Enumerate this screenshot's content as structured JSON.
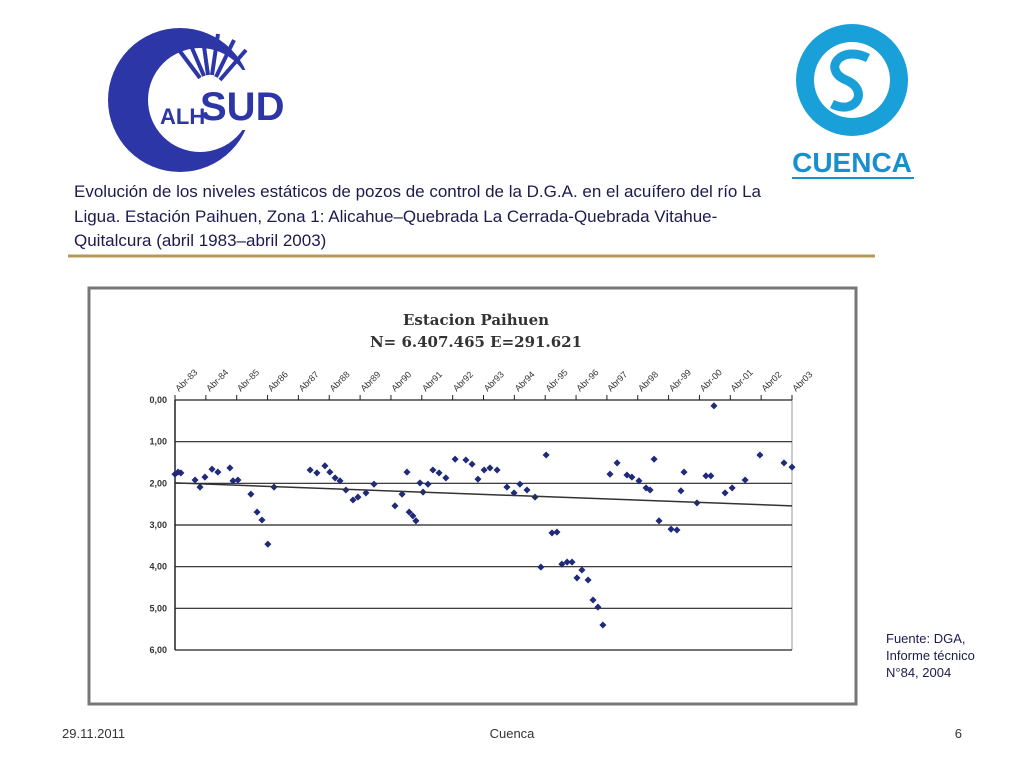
{
  "slide": {
    "logo_left": {
      "part1": "ALH",
      "part2": "SUD"
    },
    "logo_right": "CUENCA",
    "title_lines": [
      "Evolución de los niveles estáticos de pozos de control de la D.G.A. en el acuífero del río La",
      "Ligua. Estación Paihuen, Zona 1: Alicahue–Quebrada La Cerrada-Quebrada Vitahue-",
      "Quitalcura (abril 1983–abril 2003)"
    ],
    "source_lines": [
      "Fuente: DGA,",
      "Informe técnico",
      "N°84, 2004"
    ],
    "footer": {
      "date": "29.11.2011",
      "center": "Cuenca",
      "page": "6"
    }
  },
  "chart_data": {
    "type": "scatter",
    "title": "Estacion Paihuen",
    "subtitle": "N= 6.407.465 E=291.621",
    "x": [
      1983.0,
      1983.1,
      1983.19,
      1983.65,
      1983.81,
      1983.97,
      1984.2,
      1984.39,
      1984.78,
      1984.88,
      1985.04,
      1985.46,
      1985.66,
      1985.82,
      1986.01,
      1986.21,
      1987.38,
      1987.6,
      1987.86,
      1988.02,
      1988.19,
      1988.35,
      1988.54,
      1988.77,
      1988.93,
      1989.19,
      1989.45,
      1990.13,
      1990.36,
      1990.52,
      1990.59,
      1990.71,
      1990.81,
      1990.94,
      1991.04,
      1991.2,
      1991.36,
      1991.56,
      1991.78,
      1992.08,
      1992.43,
      1992.63,
      1992.82,
      1993.02,
      1993.21,
      1993.44,
      1993.76,
      1993.99,
      1994.18,
      1994.41,
      1994.67,
      1994.86,
      1995.03,
      1995.22,
      1995.38,
      1995.54,
      1995.71,
      1995.87,
      1996.03,
      1996.19,
      1996.39,
      1996.55,
      1996.71,
      1996.87,
      1997.1,
      1997.33,
      1997.65,
      1997.81,
      1998.04,
      1998.27,
      1998.4,
      1998.53,
      1998.69,
      1999.08,
      1999.27,
      1999.4,
      1999.5,
      1999.92,
      2000.21,
      2000.37,
      2000.47,
      2000.83,
      2001.06,
      2001.48,
      2001.96,
      2002.74,
      2003.0
    ],
    "series": [
      {
        "color": "#1f2a78",
        "values": [
          1.78,
          1.73,
          1.75,
          1.92,
          2.09,
          1.85,
          1.66,
          1.73,
          1.63,
          1.94,
          1.92,
          2.26,
          2.69,
          2.88,
          3.46,
          2.09,
          1.68,
          1.75,
          1.58,
          1.73,
          1.87,
          1.94,
          2.16,
          2.4,
          2.33,
          2.23,
          2.02,
          2.54,
          2.26,
          1.73,
          2.69,
          2.78,
          2.9,
          1.99,
          2.21,
          2.02,
          1.68,
          1.75,
          1.87,
          1.42,
          1.44,
          1.54,
          1.9,
          1.68,
          1.63,
          1.68,
          2.09,
          2.23,
          2.02,
          2.16,
          2.33,
          4.01,
          1.32,
          3.19,
          3.17,
          3.94,
          3.89,
          3.89,
          4.27,
          4.08,
          4.32,
          4.8,
          4.97,
          5.4,
          1.78,
          1.51,
          1.8,
          1.85,
          1.94,
          2.11,
          2.16,
          1.42,
          2.9,
          3.1,
          3.12,
          2.18,
          1.73,
          2.47,
          1.82,
          1.82,
          0.14,
          2.23,
          2.11,
          1.92,
          1.32,
          1.51,
          1.61
        ]
      }
    ],
    "trend": {
      "color": "#333333",
      "x": [
        1983,
        2003
      ],
      "values": [
        1.99,
        2.54
      ]
    },
    "xlim": [
      1983,
      2003
    ],
    "xticks": [
      {
        "value": 1983,
        "label": "Abr-83"
      },
      {
        "value": 1984,
        "label": "Abr-84"
      },
      {
        "value": 1985,
        "label": "Abr-85"
      },
      {
        "value": 1986,
        "label": "Abr86"
      },
      {
        "value": 1987,
        "label": "Abr87"
      },
      {
        "value": 1988,
        "label": "Abr88"
      },
      {
        "value": 1989,
        "label": "Abr89"
      },
      {
        "value": 1990,
        "label": "Abr90"
      },
      {
        "value": 1991,
        "label": "Abr91"
      },
      {
        "value": 1992,
        "label": "Abr92"
      },
      {
        "value": 1993,
        "label": "Abr93"
      },
      {
        "value": 1994,
        "label": "Abr94"
      },
      {
        "value": 1995,
        "label": "Abr-95"
      },
      {
        "value": 1996,
        "label": "Abr-96"
      },
      {
        "value": 1997,
        "label": "Abr97"
      },
      {
        "value": 1998,
        "label": "Abr98"
      },
      {
        "value": 1999,
        "label": "Abr-99"
      },
      {
        "value": 2000,
        "label": "Abr-00"
      },
      {
        "value": 2001,
        "label": "Abr-01"
      },
      {
        "value": 2002,
        "label": "Abr02"
      },
      {
        "value": 2003,
        "label": "Abr03"
      }
    ],
    "ylim": [
      0,
      6
    ],
    "y_inverted": true,
    "yticks": [
      {
        "value": 0,
        "label": "0,00"
      },
      {
        "value": 1,
        "label": "1,00"
      },
      {
        "value": 2,
        "label": "2,00"
      },
      {
        "value": 3,
        "label": "3,00"
      },
      {
        "value": 4,
        "label": "4,00"
      },
      {
        "value": 5,
        "label": "5,00"
      },
      {
        "value": 6,
        "label": "6,00"
      }
    ],
    "grid": true
  }
}
